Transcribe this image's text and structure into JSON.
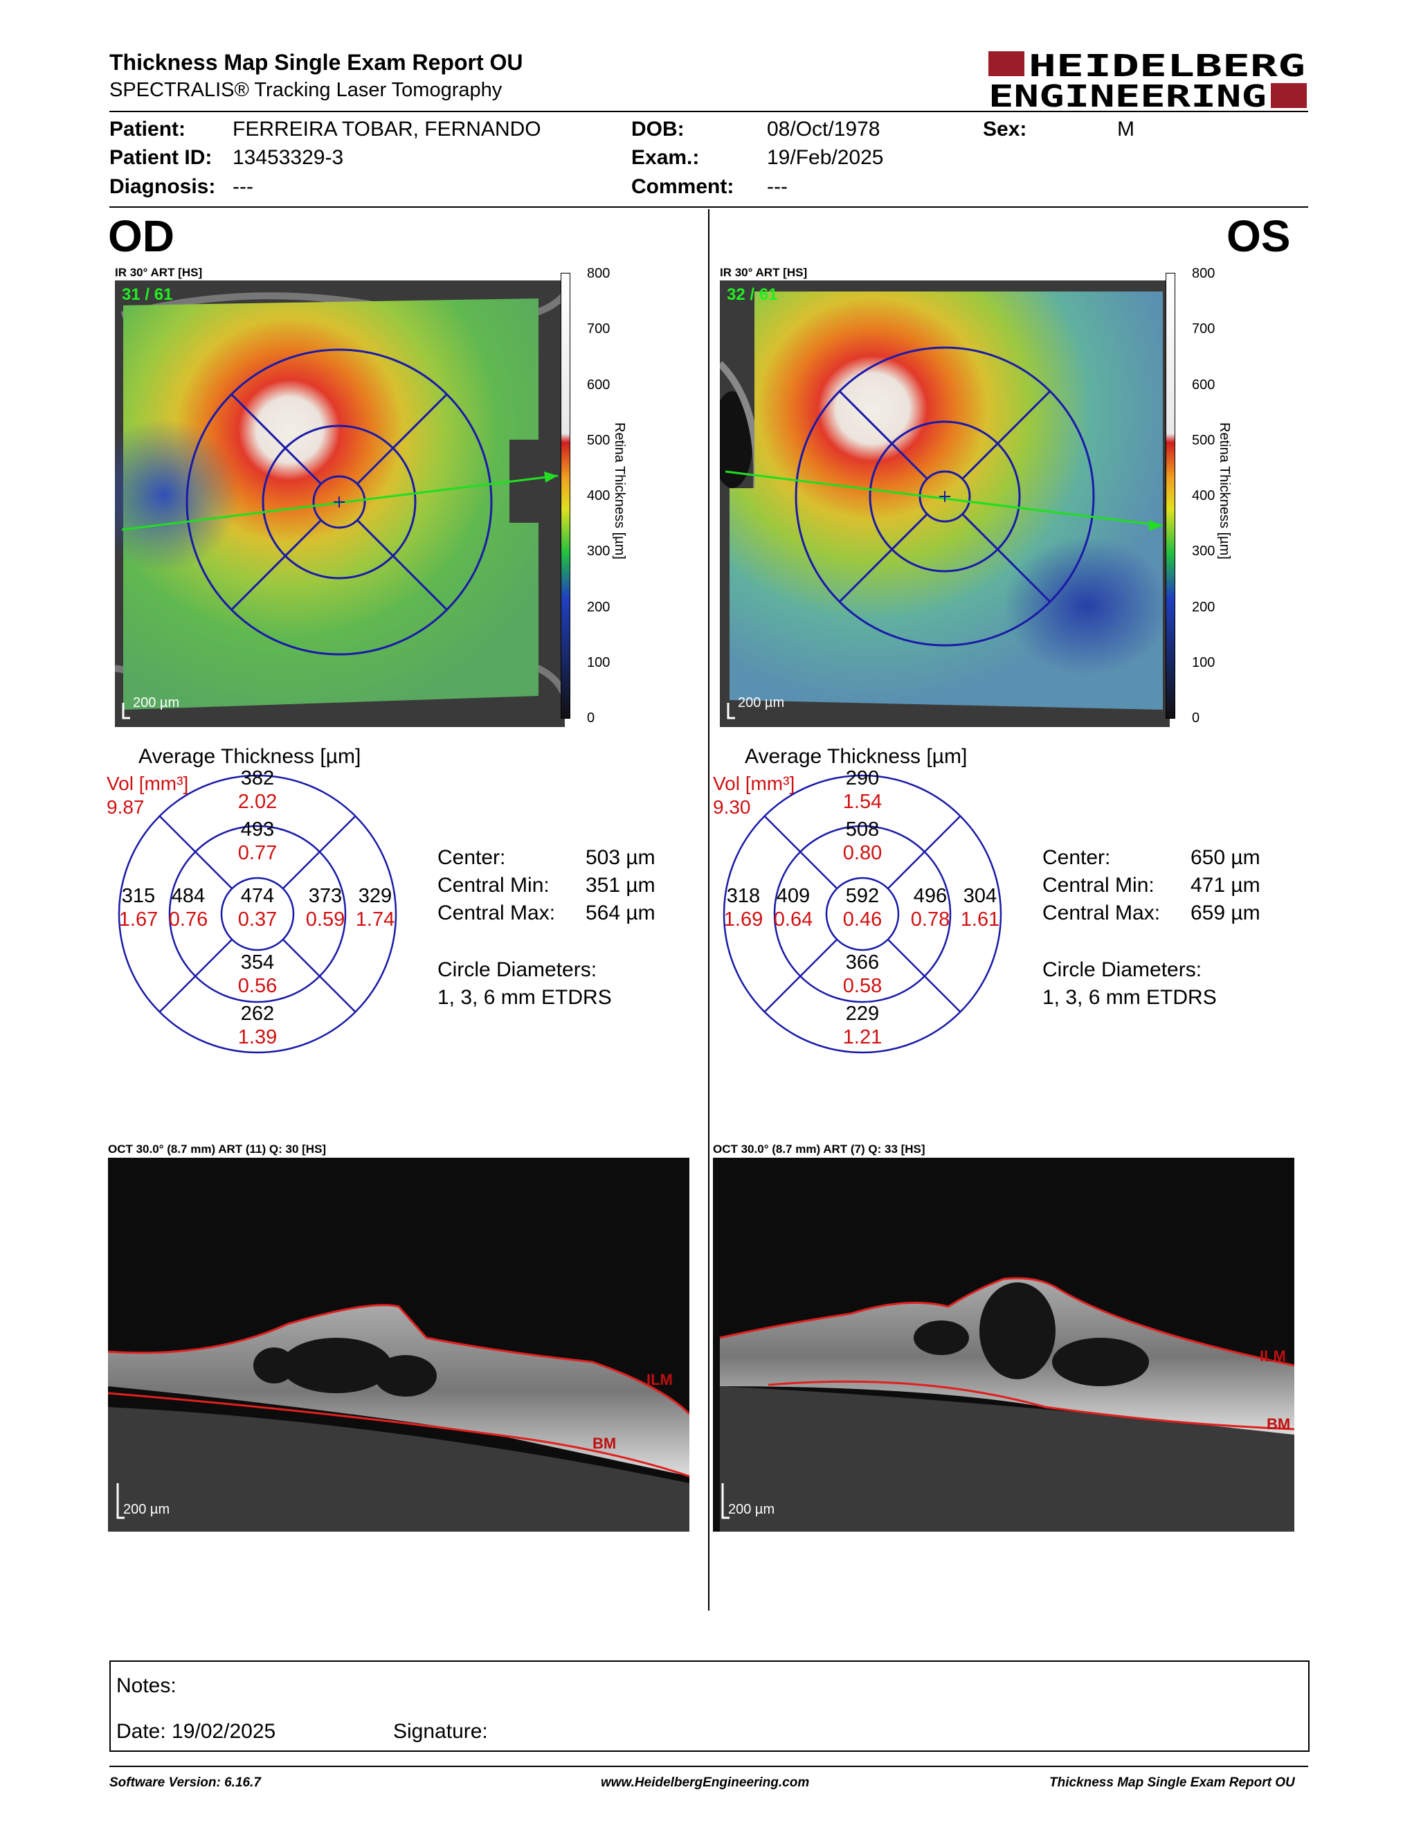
{
  "header": {
    "title": "Thickness Map Single Exam Report OU",
    "subtitle": "SPECTRALIS® Tracking Laser Tomography",
    "logo_line1": "HEIDELBERG",
    "logo_line2": "ENGINEERING"
  },
  "patient": {
    "patient_label": "Patient:",
    "patient_value": "FERREIRA TOBAR, FERNANDO",
    "id_label": "Patient ID:",
    "id_value": "13453329-3",
    "diagnosis_label": "Diagnosis:",
    "diagnosis_value": "---",
    "dob_label": "DOB:",
    "dob_value": "08/Oct/1978",
    "exam_label": "Exam.:",
    "exam_value": "19/Feb/2025",
    "comment_label": "Comment:",
    "comment_value": "---",
    "sex_label": "Sex:",
    "sex_value": "M"
  },
  "colorbar": {
    "ticks": [
      "800",
      "700",
      "600",
      "500",
      "400",
      "300",
      "200",
      "100",
      "0"
    ],
    "axis_label": "Retina Thickness [µm]"
  },
  "od": {
    "eye": "OD",
    "ir_label": "IR 30° ART [HS]",
    "frame_counter": "31 / 61",
    "scale": "200 µm",
    "avg_title": "Average Thickness [µm]",
    "vol_label": "Vol [mm³]",
    "vol_value": "9.87",
    "sectors": {
      "outer_sup": {
        "t": "382",
        "v": "2.02"
      },
      "inner_sup": {
        "t": "493",
        "v": "0.77"
      },
      "outer_left": {
        "t": "315",
        "v": "1.67"
      },
      "inner_left": {
        "t": "484",
        "v": "0.76"
      },
      "center": {
        "t": "474",
        "v": "0.37"
      },
      "inner_right": {
        "t": "373",
        "v": "0.59"
      },
      "outer_right": {
        "t": "329",
        "v": "1.74"
      },
      "inner_inf": {
        "t": "354",
        "v": "0.56"
      },
      "outer_inf": {
        "t": "262",
        "v": "1.39"
      }
    },
    "center_label": "Center:",
    "center_value": "503 µm",
    "cmin_label": "Central Min:",
    "cmin_value": "351 µm",
    "cmax_label": "Central Max:",
    "cmax_value": "564 µm",
    "circle_label": "Circle Diameters:",
    "circle_value": "1, 3, 6 mm ETDRS",
    "oct_label": "OCT 30.0° (8.7 mm) ART (11) Q: 30 [HS]",
    "ilm": "ILM",
    "bm": "BM",
    "oct_scale": "200 µm"
  },
  "os": {
    "eye": "OS",
    "ir_label": "IR 30° ART [HS]",
    "frame_counter": "32 / 61",
    "scale": "200 µm",
    "avg_title": "Average Thickness [µm]",
    "vol_label": "Vol [mm³]",
    "vol_value": "9.30",
    "sectors": {
      "outer_sup": {
        "t": "290",
        "v": "1.54"
      },
      "inner_sup": {
        "t": "508",
        "v": "0.80"
      },
      "outer_left": {
        "t": "318",
        "v": "1.69"
      },
      "inner_left": {
        "t": "409",
        "v": "0.64"
      },
      "center": {
        "t": "592",
        "v": "0.46"
      },
      "inner_right": {
        "t": "496",
        "v": "0.78"
      },
      "outer_right": {
        "t": "304",
        "v": "1.61"
      },
      "inner_inf": {
        "t": "366",
        "v": "0.58"
      },
      "outer_inf": {
        "t": "229",
        "v": "1.21"
      }
    },
    "center_label": "Center:",
    "center_value": "650 µm",
    "cmin_label": "Central Min:",
    "cmin_value": "471 µm",
    "cmax_label": "Central Max:",
    "cmax_value": "659 µm",
    "circle_label": "Circle Diameters:",
    "circle_value": "1, 3, 6 mm ETDRS",
    "oct_label": "OCT 30.0° (8.7 mm) ART (7) Q: 33 [HS]",
    "ilm": "ILM",
    "bm": "BM",
    "oct_scale": "200 µm"
  },
  "notes": {
    "notes_label": "Notes:",
    "date_label": "Date: 19/02/2025",
    "signature_label": "Signature:"
  },
  "footer": {
    "software": "Software Version: 6.16.7",
    "website": "www.HeidelbergEngineering.com",
    "report": "Thickness Map Single Exam Report OU"
  }
}
